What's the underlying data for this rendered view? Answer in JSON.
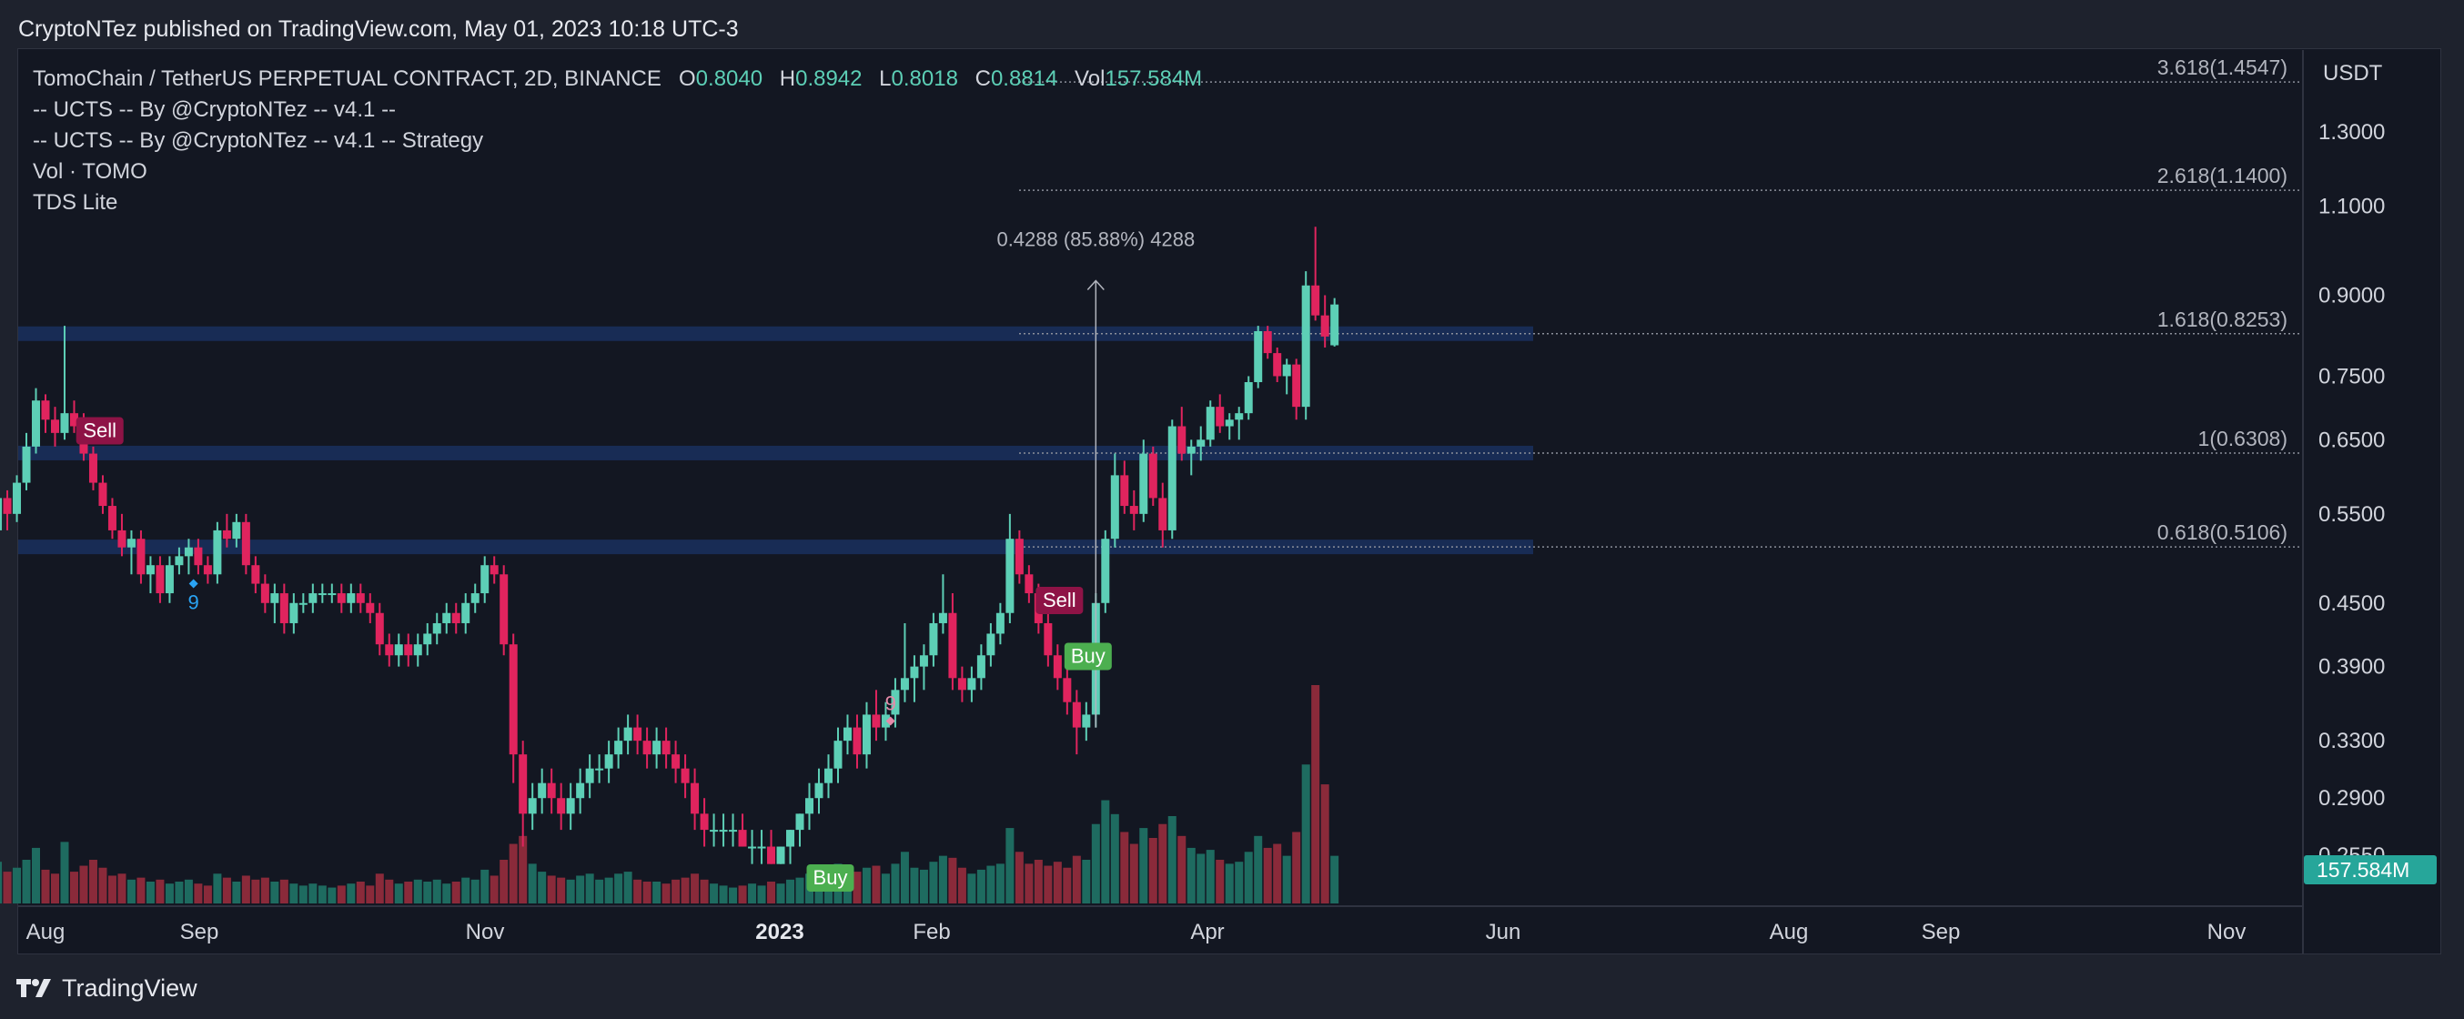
{
  "header": {
    "published": "CryptoNTez published on TradingView.com, May 01, 2023 10:18 UTC-3"
  },
  "footer": {
    "brand": "TradingView"
  },
  "legend": {
    "symbol": "TomoChain / TetherUS PERPETUAL CONTRACT, 2D, BINANCE",
    "o_label": "O",
    "o_value": "0.8040",
    "h_label": "H",
    "h_value": "0.8942",
    "l_label": "L",
    "l_value": "0.8018",
    "c_label": "C",
    "c_value": "0.8814",
    "vol_label": "Vol",
    "vol_value": "157.584M",
    "indicators": [
      "-- UCTS -- By @CryptoNTez -- v4.1 --",
      "-- UCTS -- By @CryptoNTez -- v4.1 -- Strategy",
      "Vol · TOMO",
      "TDS Lite"
    ]
  },
  "colors": {
    "up": "#5dcfb6",
    "down": "#e0245e",
    "vol_up": "#1e6b60",
    "vol_down": "#8a2a3a",
    "zone": "#1d3a78",
    "buy": "#4caf50",
    "sell": "#8e1346",
    "td_blue": "#2aa4f4",
    "td_pink": "#e58aa8",
    "badge": "#26a69a"
  },
  "chart_data": {
    "type": "candlestick",
    "timeframe": "2D",
    "exchange": "BINANCE",
    "currency": "USDT",
    "y_scale": "log",
    "y_ticks": [
      "1.3000",
      "1.1000",
      "0.9000",
      "0.7500",
      "0.6500",
      "0.5500",
      "0.4500",
      "0.3900",
      "0.3300",
      "0.2900",
      "0.2550"
    ],
    "x_ticks": [
      "Aug",
      "Sep",
      "Nov",
      "2023",
      "Feb",
      "Apr",
      "Jun",
      "Aug",
      "Sep",
      "Nov"
    ],
    "last_volume_badge": "157.584M",
    "fib_levels": [
      {
        "label": "3.618(1.4547)",
        "value": 1.4547
      },
      {
        "label": "2.618(1.1400)",
        "value": 1.14
      },
      {
        "label": "1.618(0.8253)",
        "value": 0.8253
      },
      {
        "label": "1(0.6308)",
        "value": 0.6308
      },
      {
        "label": "0.618(0.5106)",
        "value": 0.5106
      }
    ],
    "zones": [
      0.8253,
      0.6308,
      0.5106
    ],
    "measure_label": "0.4288 (85.88%) 4288",
    "signals": [
      {
        "type": "Sell",
        "date": "2022-08-12",
        "price": 0.63
      },
      {
        "type": "Buy",
        "date": "2023-01-12",
        "price": 0.255
      },
      {
        "type": "Sell",
        "date": "2023-03-01",
        "price": 0.43
      },
      {
        "type": "Buy",
        "date": "2023-03-07",
        "price": 0.42
      }
    ],
    "td_counts": [
      {
        "label": "9",
        "date": "2022-09-01",
        "price": 0.47
      },
      {
        "label": "9",
        "date": "2023-01-25",
        "price": 0.345
      }
    ],
    "candles": [
      [
        "2022-07-20",
        0.5,
        0.55,
        0.49,
        0.53,
        19
      ],
      [
        "2022-07-22",
        0.53,
        0.6,
        0.52,
        0.57,
        21
      ],
      [
        "2022-07-24",
        0.57,
        0.58,
        0.53,
        0.55,
        16
      ],
      [
        "2022-07-26",
        0.55,
        0.6,
        0.54,
        0.59,
        18
      ],
      [
        "2022-07-28",
        0.59,
        0.66,
        0.58,
        0.64,
        22
      ],
      [
        "2022-07-30",
        0.64,
        0.73,
        0.63,
        0.71,
        28
      ],
      [
        "2022-08-01",
        0.71,
        0.72,
        0.66,
        0.68,
        17
      ],
      [
        "2022-08-03",
        0.68,
        0.7,
        0.64,
        0.66,
        15
      ],
      [
        "2022-08-05",
        0.66,
        0.84,
        0.65,
        0.69,
        31
      ],
      [
        "2022-08-07",
        0.69,
        0.71,
        0.66,
        0.67,
        16
      ],
      [
        "2022-08-09",
        0.67,
        0.69,
        0.62,
        0.63,
        19
      ],
      [
        "2022-08-11",
        0.63,
        0.64,
        0.58,
        0.59,
        22
      ],
      [
        "2022-08-13",
        0.59,
        0.6,
        0.55,
        0.56,
        18
      ],
      [
        "2022-08-15",
        0.56,
        0.57,
        0.52,
        0.53,
        14
      ],
      [
        "2022-08-17",
        0.53,
        0.55,
        0.5,
        0.51,
        15
      ],
      [
        "2022-08-19",
        0.51,
        0.53,
        0.48,
        0.52,
        12
      ],
      [
        "2022-08-21",
        0.52,
        0.53,
        0.47,
        0.48,
        13
      ],
      [
        "2022-08-23",
        0.48,
        0.5,
        0.46,
        0.49,
        11
      ],
      [
        "2022-08-25",
        0.49,
        0.5,
        0.45,
        0.46,
        12
      ],
      [
        "2022-08-27",
        0.46,
        0.5,
        0.45,
        0.49,
        10
      ],
      [
        "2022-08-29",
        0.49,
        0.51,
        0.48,
        0.5,
        11
      ],
      [
        "2022-08-31",
        0.5,
        0.52,
        0.48,
        0.51,
        12
      ],
      [
        "2022-09-02",
        0.51,
        0.52,
        0.48,
        0.49,
        10
      ],
      [
        "2022-09-04",
        0.49,
        0.5,
        0.47,
        0.48,
        9
      ],
      [
        "2022-09-06",
        0.48,
        0.54,
        0.47,
        0.53,
        15
      ],
      [
        "2022-09-08",
        0.53,
        0.55,
        0.51,
        0.52,
        13
      ],
      [
        "2022-09-10",
        0.52,
        0.55,
        0.51,
        0.54,
        11
      ],
      [
        "2022-09-12",
        0.54,
        0.55,
        0.48,
        0.49,
        14
      ],
      [
        "2022-09-14",
        0.49,
        0.5,
        0.46,
        0.47,
        12
      ],
      [
        "2022-09-16",
        0.47,
        0.48,
        0.44,
        0.45,
        13
      ],
      [
        "2022-09-18",
        0.45,
        0.47,
        0.43,
        0.46,
        11
      ],
      [
        "2022-09-20",
        0.46,
        0.47,
        0.42,
        0.43,
        12
      ],
      [
        "2022-09-22",
        0.43,
        0.46,
        0.42,
        0.45,
        10
      ],
      [
        "2022-09-24",
        0.45,
        0.46,
        0.44,
        0.45,
        9
      ],
      [
        "2022-09-26",
        0.45,
        0.47,
        0.44,
        0.46,
        10
      ],
      [
        "2022-09-28",
        0.46,
        0.47,
        0.45,
        0.46,
        9
      ],
      [
        "2022-09-30",
        0.46,
        0.47,
        0.45,
        0.46,
        8
      ],
      [
        "2022-10-02",
        0.46,
        0.47,
        0.44,
        0.45,
        9
      ],
      [
        "2022-10-04",
        0.45,
        0.47,
        0.44,
        0.46,
        10
      ],
      [
        "2022-10-06",
        0.46,
        0.47,
        0.44,
        0.45,
        11
      ],
      [
        "2022-10-08",
        0.45,
        0.46,
        0.43,
        0.44,
        9
      ],
      [
        "2022-10-10",
        0.44,
        0.45,
        0.4,
        0.41,
        15
      ],
      [
        "2022-10-12",
        0.41,
        0.42,
        0.39,
        0.4,
        12
      ],
      [
        "2022-10-14",
        0.4,
        0.42,
        0.39,
        0.41,
        10
      ],
      [
        "2022-10-16",
        0.41,
        0.42,
        0.39,
        0.4,
        11
      ],
      [
        "2022-10-18",
        0.4,
        0.42,
        0.39,
        0.41,
        12
      ],
      [
        "2022-10-20",
        0.41,
        0.43,
        0.4,
        0.42,
        11
      ],
      [
        "2022-10-22",
        0.42,
        0.44,
        0.41,
        0.43,
        12
      ],
      [
        "2022-10-24",
        0.43,
        0.45,
        0.42,
        0.44,
        10
      ],
      [
        "2022-10-26",
        0.44,
        0.45,
        0.42,
        0.43,
        11
      ],
      [
        "2022-10-28",
        0.43,
        0.46,
        0.42,
        0.45,
        13
      ],
      [
        "2022-10-30",
        0.45,
        0.47,
        0.44,
        0.46,
        12
      ],
      [
        "2022-11-01",
        0.46,
        0.5,
        0.45,
        0.49,
        17
      ],
      [
        "2022-11-03",
        0.49,
        0.5,
        0.47,
        0.48,
        14
      ],
      [
        "2022-11-05",
        0.48,
        0.49,
        0.4,
        0.41,
        22
      ],
      [
        "2022-11-07",
        0.41,
        0.42,
        0.3,
        0.32,
        30
      ],
      [
        "2022-11-09",
        0.32,
        0.33,
        0.26,
        0.28,
        34
      ],
      [
        "2022-11-11",
        0.28,
        0.3,
        0.27,
        0.29,
        20
      ],
      [
        "2022-11-13",
        0.29,
        0.31,
        0.28,
        0.3,
        16
      ],
      [
        "2022-11-15",
        0.3,
        0.31,
        0.28,
        0.29,
        14
      ],
      [
        "2022-11-17",
        0.29,
        0.3,
        0.27,
        0.28,
        13
      ],
      [
        "2022-11-19",
        0.28,
        0.3,
        0.27,
        0.29,
        12
      ],
      [
        "2022-11-21",
        0.29,
        0.31,
        0.28,
        0.3,
        14
      ],
      [
        "2022-11-23",
        0.3,
        0.32,
        0.29,
        0.31,
        15
      ],
      [
        "2022-11-25",
        0.31,
        0.32,
        0.3,
        0.31,
        12
      ],
      [
        "2022-11-27",
        0.31,
        0.33,
        0.3,
        0.32,
        13
      ],
      [
        "2022-11-29",
        0.32,
        0.34,
        0.31,
        0.33,
        15
      ],
      [
        "2022-12-01",
        0.33,
        0.35,
        0.32,
        0.34,
        16
      ],
      [
        "2022-12-03",
        0.34,
        0.35,
        0.32,
        0.33,
        12
      ],
      [
        "2022-12-05",
        0.33,
        0.34,
        0.31,
        0.32,
        11
      ],
      [
        "2022-12-07",
        0.32,
        0.34,
        0.31,
        0.33,
        11
      ],
      [
        "2022-12-09",
        0.33,
        0.34,
        0.31,
        0.32,
        10
      ],
      [
        "2022-12-11",
        0.32,
        0.33,
        0.3,
        0.31,
        12
      ],
      [
        "2022-12-13",
        0.31,
        0.32,
        0.29,
        0.3,
        13
      ],
      [
        "2022-12-15",
        0.3,
        0.31,
        0.27,
        0.28,
        15
      ],
      [
        "2022-12-17",
        0.28,
        0.29,
        0.26,
        0.27,
        12
      ],
      [
        "2022-12-19",
        0.27,
        0.28,
        0.26,
        0.27,
        10
      ],
      [
        "2022-12-21",
        0.27,
        0.28,
        0.26,
        0.27,
        9
      ],
      [
        "2022-12-23",
        0.27,
        0.28,
        0.26,
        0.27,
        8
      ],
      [
        "2022-12-25",
        0.27,
        0.28,
        0.26,
        0.26,
        9
      ],
      [
        "2022-12-27",
        0.26,
        0.27,
        0.25,
        0.26,
        10
      ],
      [
        "2022-12-29",
        0.26,
        0.27,
        0.25,
        0.26,
        9
      ],
      [
        "2022-12-31",
        0.26,
        0.27,
        0.25,
        0.25,
        11
      ],
      [
        "2023-01-02",
        0.25,
        0.26,
        0.25,
        0.26,
        10
      ],
      [
        "2023-01-04",
        0.26,
        0.27,
        0.25,
        0.27,
        12
      ],
      [
        "2023-01-06",
        0.27,
        0.28,
        0.26,
        0.28,
        13
      ],
      [
        "2023-01-08",
        0.28,
        0.3,
        0.27,
        0.29,
        15
      ],
      [
        "2023-01-10",
        0.29,
        0.31,
        0.28,
        0.3,
        16
      ],
      [
        "2023-01-12",
        0.3,
        0.32,
        0.29,
        0.31,
        18
      ],
      [
        "2023-01-14",
        0.31,
        0.34,
        0.3,
        0.33,
        20
      ],
      [
        "2023-01-16",
        0.33,
        0.35,
        0.32,
        0.34,
        17
      ],
      [
        "2023-01-18",
        0.34,
        0.35,
        0.31,
        0.32,
        16
      ],
      [
        "2023-01-20",
        0.32,
        0.36,
        0.31,
        0.35,
        18
      ],
      [
        "2023-01-22",
        0.35,
        0.37,
        0.33,
        0.34,
        19
      ],
      [
        "2023-01-24",
        0.34,
        0.36,
        0.33,
        0.35,
        15
      ],
      [
        "2023-01-26",
        0.35,
        0.38,
        0.34,
        0.37,
        20
      ],
      [
        "2023-01-28",
        0.37,
        0.43,
        0.36,
        0.38,
        26
      ],
      [
        "2023-01-30",
        0.38,
        0.4,
        0.36,
        0.39,
        18
      ],
      [
        "2023-02-01",
        0.39,
        0.41,
        0.37,
        0.4,
        17
      ],
      [
        "2023-02-03",
        0.4,
        0.44,
        0.39,
        0.43,
        21
      ],
      [
        "2023-02-05",
        0.43,
        0.48,
        0.42,
        0.44,
        24
      ],
      [
        "2023-02-07",
        0.44,
        0.46,
        0.37,
        0.38,
        23
      ],
      [
        "2023-02-09",
        0.38,
        0.39,
        0.36,
        0.37,
        18
      ],
      [
        "2023-02-11",
        0.37,
        0.39,
        0.36,
        0.38,
        15
      ],
      [
        "2023-02-13",
        0.38,
        0.41,
        0.37,
        0.4,
        17
      ],
      [
        "2023-02-15",
        0.4,
        0.43,
        0.39,
        0.42,
        19
      ],
      [
        "2023-02-17",
        0.42,
        0.45,
        0.41,
        0.44,
        20
      ],
      [
        "2023-02-19",
        0.44,
        0.55,
        0.43,
        0.52,
        38
      ],
      [
        "2023-02-21",
        0.52,
        0.53,
        0.47,
        0.48,
        26
      ],
      [
        "2023-02-23",
        0.48,
        0.49,
        0.45,
        0.46,
        20
      ],
      [
        "2023-02-25",
        0.46,
        0.47,
        0.42,
        0.43,
        22
      ],
      [
        "2023-02-27",
        0.43,
        0.44,
        0.39,
        0.4,
        19
      ],
      [
        "2023-03-01",
        0.4,
        0.41,
        0.37,
        0.38,
        21
      ],
      [
        "2023-03-03",
        0.38,
        0.39,
        0.35,
        0.36,
        18
      ],
      [
        "2023-03-05",
        0.36,
        0.37,
        0.32,
        0.34,
        24
      ],
      [
        "2023-03-07",
        0.34,
        0.36,
        0.33,
        0.35,
        22
      ],
      [
        "2023-03-09",
        0.35,
        0.46,
        0.34,
        0.45,
        40
      ],
      [
        "2023-03-11",
        0.45,
        0.53,
        0.44,
        0.52,
        52
      ],
      [
        "2023-03-13",
        0.52,
        0.63,
        0.51,
        0.6,
        45
      ],
      [
        "2023-03-15",
        0.6,
        0.62,
        0.55,
        0.56,
        36
      ],
      [
        "2023-03-17",
        0.56,
        0.58,
        0.53,
        0.55,
        30
      ],
      [
        "2023-03-19",
        0.55,
        0.65,
        0.54,
        0.63,
        38
      ],
      [
        "2023-03-21",
        0.63,
        0.64,
        0.56,
        0.57,
        33
      ],
      [
        "2023-03-23",
        0.57,
        0.59,
        0.51,
        0.53,
        40
      ],
      [
        "2023-03-25",
        0.53,
        0.68,
        0.52,
        0.67,
        44
      ],
      [
        "2023-03-27",
        0.67,
        0.7,
        0.62,
        0.63,
        34
      ],
      [
        "2023-03-29",
        0.63,
        0.65,
        0.6,
        0.64,
        28
      ],
      [
        "2023-03-31",
        0.64,
        0.67,
        0.62,
        0.65,
        25
      ],
      [
        "2023-04-02",
        0.65,
        0.71,
        0.64,
        0.7,
        27
      ],
      [
        "2023-04-04",
        0.7,
        0.72,
        0.66,
        0.67,
        22
      ],
      [
        "2023-04-06",
        0.67,
        0.69,
        0.65,
        0.68,
        20
      ],
      [
        "2023-04-08",
        0.68,
        0.7,
        0.65,
        0.69,
        21
      ],
      [
        "2023-04-10",
        0.69,
        0.75,
        0.68,
        0.74,
        26
      ],
      [
        "2023-04-12",
        0.74,
        0.84,
        0.73,
        0.83,
        34
      ],
      [
        "2023-04-14",
        0.83,
        0.84,
        0.78,
        0.79,
        28
      ],
      [
        "2023-04-16",
        0.79,
        0.8,
        0.74,
        0.75,
        30
      ],
      [
        "2023-04-18",
        0.75,
        0.78,
        0.72,
        0.77,
        24
      ],
      [
        "2023-04-20",
        0.77,
        0.78,
        0.68,
        0.7,
        36
      ],
      [
        "2023-04-22",
        0.7,
        0.95,
        0.68,
        0.92,
        70
      ],
      [
        "2023-04-24",
        0.92,
        1.05,
        0.85,
        0.86,
        110
      ],
      [
        "2023-04-26",
        0.86,
        0.9,
        0.8,
        0.82,
        60
      ],
      [
        "2023-04-28",
        0.804,
        0.8942,
        0.8018,
        0.8814,
        24
      ]
    ]
  }
}
